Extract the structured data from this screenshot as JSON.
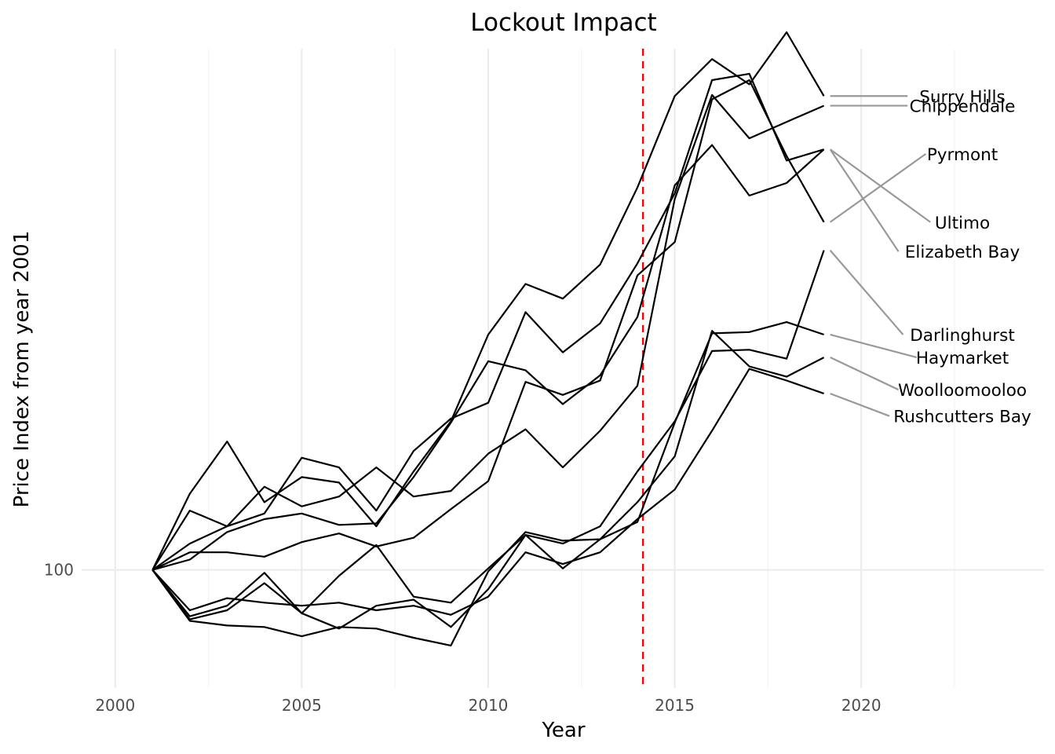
{
  "chart_data": {
    "type": "line",
    "title": "Lockout Impact",
    "xlabel": "Year",
    "ylabel": "Price Index from year 2001",
    "x": [
      2001,
      2002,
      2003,
      2004,
      2005,
      2006,
      2007,
      2008,
      2009,
      2010,
      2011,
      2012,
      2013,
      2014,
      2015,
      2016,
      2017,
      2018,
      2019
    ],
    "xlim": [
      1999.1,
      2024.9
    ],
    "ylim": [
      92.3,
      142.4
    ],
    "y_scale": "log",
    "x_ticks": [
      2000,
      2005,
      2010,
      2015,
      2020
    ],
    "y_ticks": [
      100
    ],
    "reference_line": {
      "x": 2014.15,
      "color": "#ff0000",
      "style": "dashed"
    },
    "grid": true,
    "legend": "direct labels at line ends",
    "line_color": "#000000",
    "leader_color": "#999999",
    "series": [
      {
        "name": "Surry Hills",
        "label_y": 137.9,
        "values": [
          100,
          105.3,
          109.1,
          104.7,
          106.5,
          106.1,
          103.0,
          106.9,
          110.6,
          117.3,
          121.4,
          120.2,
          123.0,
          129.6,
          137.9,
          141.4,
          139.0,
          144.0,
          137.9
        ]
      },
      {
        "name": "Chippendale",
        "label_y": 137.0,
        "values": [
          100,
          104.1,
          103.0,
          105.8,
          104.4,
          105.1,
          107.2,
          105.1,
          105.5,
          108.2,
          110.0,
          107.2,
          109.9,
          113.3,
          128.6,
          138.0,
          134.0,
          135.5,
          137.0
        ]
      },
      {
        "name": "Pyrmont",
        "label_y": 132.6,
        "values": [
          100,
          101.2,
          101.2,
          100.9,
          101.9,
          102.5,
          101.6,
          102.2,
          104.2,
          106.2,
          113.6,
          112.6,
          113.7,
          122.1,
          124.9,
          137.6,
          139.4,
          132.4,
          126.6
        ]
      },
      {
        "name": "Ultimo",
        "label_y": 126.6,
        "values": [
          100,
          101.8,
          103.0,
          103.9,
          107.9,
          107.2,
          104.1,
          108.4,
          110.8,
          112.0,
          119.1,
          115.9,
          118.2,
          123.1,
          129.1,
          139.4,
          140.0,
          132.0,
          133.0
        ]
      },
      {
        "name": "Elizabeth Bay",
        "label_y": 124.1,
        "values": [
          100,
          100.7,
          102.6,
          103.5,
          103.9,
          103.1,
          103.2,
          106.5,
          110.5,
          115.2,
          114.5,
          111.9,
          114.1,
          118.7,
          129.8,
          133.4,
          128.9,
          130.0,
          133.0
        ]
      },
      {
        "name": "Darlinghurst",
        "label_y": 117.3,
        "values": [
          100,
          96.7,
          97.3,
          99.1,
          97.1,
          99.6,
          101.7,
          98.2,
          97.8,
          100.1,
          102.4,
          101.8,
          103.0,
          106.9,
          110.6,
          116.0,
          116.1,
          115.4,
          124.2
        ]
      },
      {
        "name": "Haymarket",
        "label_y": 115.5,
        "values": [
          100,
          96.6,
          96.3,
          96.2,
          95.6,
          96.2,
          96.1,
          95.5,
          95.0,
          99.9,
          102.6,
          102.0,
          102.1,
          103.3,
          110.5,
          117.4,
          117.5,
          118.3,
          117.3
        ]
      },
      {
        "name": "Woolloomooloo",
        "label_y": 113.0,
        "values": [
          100,
          96.9,
          97.6,
          99.8,
          97.1,
          96.1,
          97.6,
          98.0,
          96.2,
          98.7,
          102.4,
          100.1,
          102.1,
          104.7,
          108.0,
          117.6,
          114.8,
          114.0,
          115.5
        ]
      },
      {
        "name": "Rushcutters Bay",
        "label_y": 111.0,
        "values": [
          100,
          97.3,
          98.1,
          97.8,
          97.6,
          97.8,
          97.3,
          97.6,
          97.0,
          98.2,
          101.2,
          100.4,
          101.2,
          103.5,
          105.6,
          109.9,
          114.6,
          113.7,
          112.7
        ]
      }
    ]
  }
}
